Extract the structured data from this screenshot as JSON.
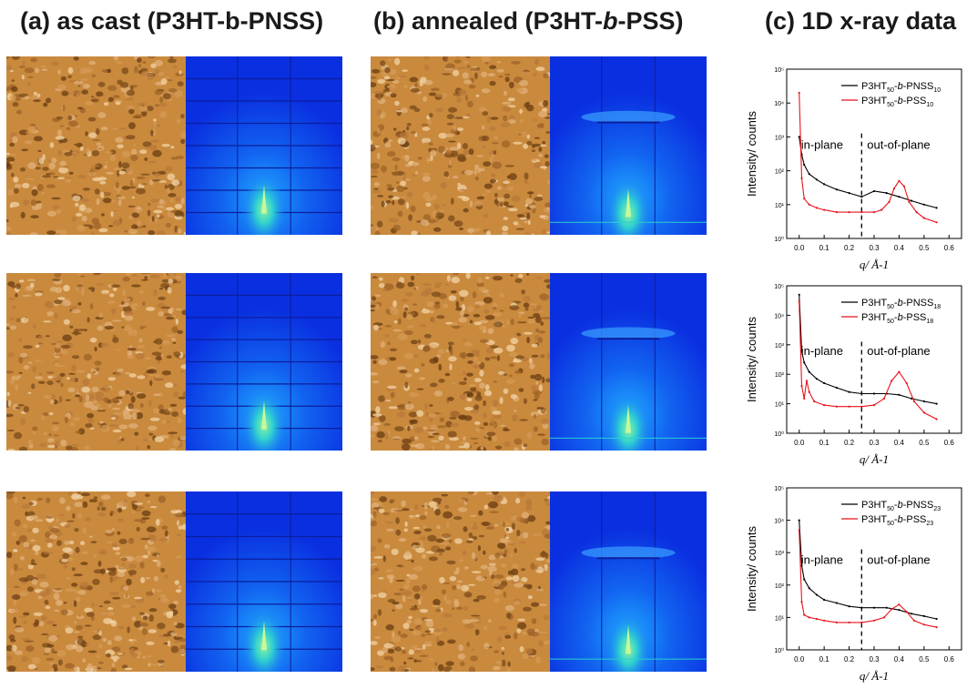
{
  "titles": {
    "a": "(a) as cast (P3HT-b-PNSS)",
    "b_pre": "(b) annealed (P3HT-",
    "b_ital": "b",
    "b_post": "-PSS)",
    "c": "(c) 1D x-ray data"
  },
  "colors": {
    "afm_base": "#c98a3e",
    "gi_blue": "#0a2fe0",
    "series_pnss": "#000000",
    "series_pss": "#e8121b"
  },
  "chart_data": [
    {
      "type": "line",
      "xlabel": "q/ Å-1",
      "ylabel": "Intensity/ counts",
      "xlim": [
        -0.05,
        0.65
      ],
      "ylim_log10": [
        0,
        5
      ],
      "yscale": "log",
      "xticks": [
        "0.0",
        "0.1",
        "0.2",
        "0.3",
        "0.4",
        "0.5",
        "0.6"
      ],
      "yticks": [
        "10⁰",
        "10¹",
        "10²",
        "10³",
        "10⁴",
        "10⁵"
      ],
      "annotations": {
        "left": "in-plane",
        "right": "out-of-plane",
        "divider_q": 0.25
      },
      "legend_position": "top-right",
      "series": [
        {
          "name": "P3HT50-b-PNSS10",
          "legend_main": "P3HT",
          "legend_sub1": "50",
          "legend_mid": "-",
          "legend_b": "b",
          "legend_mid2": "-PNSS",
          "legend_sub2": "10",
          "x": [
            0.0,
            0.01,
            0.02,
            0.04,
            0.07,
            0.1,
            0.15,
            0.2,
            0.25,
            0.3,
            0.35,
            0.4,
            0.45,
            0.5,
            0.55
          ],
          "y": [
            1000,
            300,
            150,
            80,
            55,
            40,
            28,
            22,
            17,
            25,
            22,
            17,
            13,
            10,
            8
          ]
        },
        {
          "name": "P3HT50-b-PSS10",
          "legend_main": "P3HT",
          "legend_sub1": "50",
          "legend_mid": "-",
          "legend_b": "b",
          "legend_mid2": "-PSS",
          "legend_sub2": "10",
          "x": [
            0.0,
            0.01,
            0.02,
            0.04,
            0.07,
            0.1,
            0.15,
            0.2,
            0.25,
            0.3,
            0.33,
            0.36,
            0.38,
            0.4,
            0.42,
            0.44,
            0.47,
            0.5,
            0.55
          ],
          "y": [
            20000,
            60,
            15,
            10,
            8,
            7,
            6,
            6,
            6,
            6,
            7,
            12,
            30,
            50,
            35,
            12,
            6,
            4,
            3
          ]
        }
      ]
    },
    {
      "type": "line",
      "xlabel": "q/ Å-1",
      "ylabel": "Intensity/ counts",
      "xlim": [
        -0.05,
        0.65
      ],
      "ylim_log10": [
        0,
        5
      ],
      "yscale": "log",
      "xticks": [
        "0.0",
        "0.1",
        "0.2",
        "0.3",
        "0.4",
        "0.5",
        "0.6"
      ],
      "yticks": [
        "10⁰",
        "10¹",
        "10²",
        "10³",
        "10⁴",
        "10⁵"
      ],
      "annotations": {
        "left": "in-plane",
        "right": "out-of-plane",
        "divider_q": 0.25
      },
      "legend_position": "top-right",
      "series": [
        {
          "name": "P3HT50-b-PNSS18",
          "legend_main": "P3HT",
          "legend_sub1": "50",
          "legend_mid": "-",
          "legend_b": "b",
          "legend_mid2": "-PNSS",
          "legend_sub2": "18",
          "x": [
            0.0,
            0.01,
            0.02,
            0.04,
            0.07,
            0.1,
            0.15,
            0.2,
            0.25,
            0.3,
            0.35,
            0.4,
            0.45,
            0.5,
            0.55
          ],
          "y": [
            50000,
            600,
            250,
            120,
            70,
            50,
            35,
            25,
            22,
            22,
            22,
            20,
            15,
            12,
            10
          ]
        },
        {
          "name": "P3HT50-b-PSS18",
          "legend_main": "P3HT",
          "legend_sub1": "50",
          "legend_mid": "-",
          "legend_b": "b",
          "legend_mid2": "-PSS",
          "legend_sub2": "18",
          "x": [
            0.0,
            0.01,
            0.02,
            0.03,
            0.04,
            0.06,
            0.1,
            0.15,
            0.2,
            0.25,
            0.3,
            0.34,
            0.37,
            0.4,
            0.43,
            0.46,
            0.5,
            0.55
          ],
          "y": [
            30000,
            40,
            15,
            60,
            25,
            12,
            9,
            8,
            8,
            8,
            9,
            15,
            60,
            120,
            50,
            12,
            5,
            3
          ]
        }
      ]
    },
    {
      "type": "line",
      "xlabel": "q/ Å-1",
      "ylabel": "Intensity/ counts",
      "xlim": [
        -0.05,
        0.65
      ],
      "ylim_log10": [
        0,
        5
      ],
      "yscale": "log",
      "xticks": [
        "0.0",
        "0.1",
        "0.2",
        "0.3",
        "0.4",
        "0.5",
        "0.6"
      ],
      "yticks": [
        "10⁰",
        "10¹",
        "10²",
        "10³",
        "10⁴",
        "10⁵"
      ],
      "annotations": {
        "left": "in-plane",
        "right": "out-of-plane",
        "divider_q": 0.25
      },
      "legend_position": "top-right",
      "series": [
        {
          "name": "P3HT50-b-PNSS23",
          "legend_main": "P3HT",
          "legend_sub1": "50",
          "legend_mid": "-",
          "legend_b": "b",
          "legend_mid2": "-PNSS",
          "legend_sub2": "23",
          "x": [
            0.0,
            0.01,
            0.02,
            0.04,
            0.07,
            0.1,
            0.15,
            0.2,
            0.25,
            0.3,
            0.35,
            0.4,
            0.45,
            0.5,
            0.55
          ],
          "y": [
            10000,
            400,
            150,
            80,
            50,
            35,
            28,
            22,
            20,
            20,
            20,
            17,
            13,
            11,
            9
          ]
        },
        {
          "name": "P3HT50-b-PSS23",
          "legend_main": "P3HT",
          "legend_sub1": "50",
          "legend_mid": "-",
          "legend_b": "b",
          "legend_mid2": "-PSS",
          "legend_sub2": "23",
          "x": [
            0.0,
            0.01,
            0.02,
            0.04,
            0.07,
            0.1,
            0.15,
            0.2,
            0.25,
            0.3,
            0.34,
            0.37,
            0.4,
            0.43,
            0.46,
            0.5,
            0.55
          ],
          "y": [
            5000,
            30,
            12,
            10,
            9,
            8,
            7,
            7,
            7,
            8,
            10,
            18,
            25,
            15,
            8,
            6,
            5
          ]
        }
      ]
    }
  ]
}
